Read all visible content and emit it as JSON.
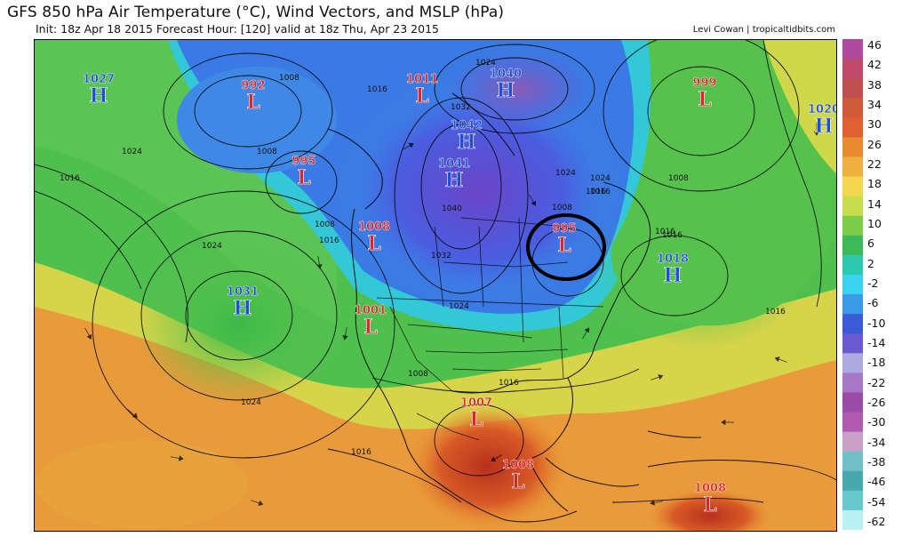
{
  "header": {
    "title": "GFS 850 hPa Air Temperature (°C), Wind Vectors, and MSLP (hPa)",
    "subtitle": "Init: 18z Apr 18 2015   Forecast Hour: [120]   valid at 18z Thu, Apr 23 2015",
    "credit": "Levi Cowan | tropicaltidbits.com"
  },
  "colorbar": {
    "labels": [
      "46",
      "42",
      "38",
      "34",
      "30",
      "26",
      "22",
      "18",
      "14",
      "10",
      "6",
      "2",
      "-2",
      "-6",
      "-10",
      "-14",
      "-18",
      "-22",
      "-26",
      "-30",
      "-34",
      "-38",
      "-46",
      "-54",
      "-62"
    ],
    "colors": [
      "#b04aa0",
      "#c04a6a",
      "#c05050",
      "#d05a3a",
      "#e06030",
      "#e88a30",
      "#f0b040",
      "#f2d84e",
      "#c8dc4e",
      "#7ccd4a",
      "#3cba58",
      "#2cc8b0",
      "#3ad2ee",
      "#3a9ae8",
      "#3a5ad8",
      "#6a5ad0",
      "#b0a8e0",
      "#a878c8",
      "#9a4aa8",
      "#b05ab0",
      "#c8a0c8",
      "#70c0c8",
      "#48a8b0",
      "#68c8d0",
      "#b8f0f4"
    ]
  },
  "pressure_centers": [
    {
      "type": "H",
      "value": "1027",
      "color": "#1f4fd0"
    },
    {
      "type": "L",
      "value": "992",
      "color": "#d8262a"
    },
    {
      "type": "L",
      "value": "995",
      "color": "#d8262a"
    },
    {
      "type": "L",
      "value": "1011",
      "color": "#d8262a"
    },
    {
      "type": "H",
      "value": "1040",
      "color": "#1f4fd0"
    },
    {
      "type": "H",
      "value": "1042",
      "color": "#1f4fd0"
    },
    {
      "type": "H",
      "value": "1041",
      "color": "#1f4fd0"
    },
    {
      "type": "L",
      "value": "999",
      "color": "#d8262a"
    },
    {
      "type": "H",
      "value": "1020",
      "color": "#1f4fd0"
    },
    {
      "type": "L",
      "value": "1008",
      "color": "#d8262a"
    },
    {
      "type": "L",
      "value": "995",
      "color": "#d8262a"
    },
    {
      "type": "H",
      "value": "1031",
      "color": "#1f4fd0"
    },
    {
      "type": "L",
      "value": "1001",
      "color": "#d8262a"
    },
    {
      "type": "H",
      "value": "1018",
      "color": "#1f4fd0"
    },
    {
      "type": "L",
      "value": "1007",
      "color": "#d8262a"
    },
    {
      "type": "L",
      "value": "1008",
      "color": "#d8262a"
    },
    {
      "type": "L",
      "value": "1008",
      "color": "#d8262a"
    }
  ],
  "isobar_labels": [
    "1024",
    "1016",
    "1008",
    "1008",
    "1016",
    "1024",
    "1016",
    "1008",
    "1016",
    "1016",
    "1008",
    "1024",
    "1032",
    "1040",
    "1024",
    "1016",
    "1024",
    "1024",
    "1008",
    "1016",
    "1016",
    "1008",
    "1016",
    "1024",
    "1032",
    "1016"
  ]
}
